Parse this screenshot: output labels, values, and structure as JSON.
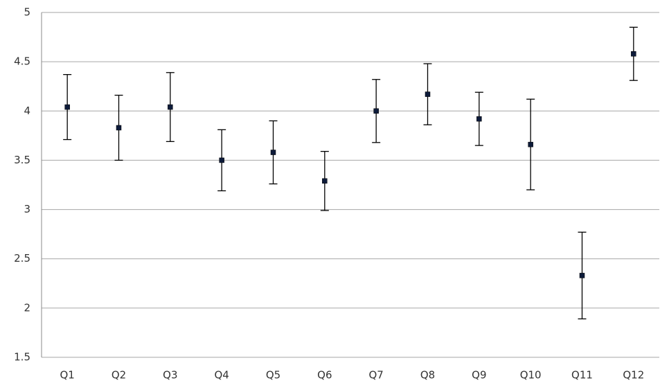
{
  "chart_data": {
    "type": "scatter",
    "categories": [
      "Q1",
      "Q2",
      "Q3",
      "Q4",
      "Q5",
      "Q6",
      "Q7",
      "Q8",
      "Q9",
      "Q10",
      "Q11",
      "Q12"
    ],
    "values": [
      4.04,
      3.83,
      4.04,
      3.5,
      3.58,
      3.29,
      4.0,
      4.17,
      3.92,
      3.66,
      2.33,
      4.58
    ],
    "errors": [
      0.33,
      0.33,
      0.35,
      0.31,
      0.32,
      0.3,
      0.32,
      0.31,
      0.27,
      0.46,
      0.44,
      0.27
    ],
    "color": "#0d1b3a",
    "ylim": [
      1.5,
      5
    ],
    "yticks": [
      1.5,
      2,
      2.5,
      3,
      3.5,
      4,
      4.5,
      5
    ],
    "grid": true
  }
}
